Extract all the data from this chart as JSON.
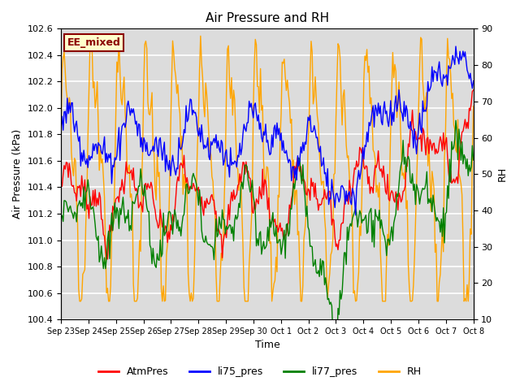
{
  "title": "Air Pressure and RH",
  "xlabel": "Time",
  "ylabel_left": "Air Pressure (kPa)",
  "ylabel_right": "RH",
  "ylim_left": [
    100.4,
    102.6
  ],
  "ylim_right": [
    10,
    90
  ],
  "yticks_left": [
    100.4,
    100.6,
    100.8,
    101.0,
    101.2,
    101.4,
    101.6,
    101.8,
    102.0,
    102.2,
    102.4,
    102.6
  ],
  "yticks_right": [
    10,
    20,
    30,
    40,
    50,
    60,
    70,
    80,
    90
  ],
  "x_tick_labels": [
    "Sep 23",
    "Sep 24",
    "Sep 25",
    "Sep 26",
    "Sep 27",
    "Sep 28",
    "Sep 29",
    "Sep 30",
    "Oct 1",
    "Oct 2",
    "Oct 3",
    "Oct 4",
    "Oct 5",
    "Oct 6",
    "Oct 7",
    "Oct 8"
  ],
  "legend_labels": [
    "AtmPres",
    "li75_pres",
    "li77_pres",
    "RH"
  ],
  "legend_colors": [
    "red",
    "blue",
    "green",
    "orange"
  ],
  "annotation_text": "EE_mixed",
  "annotation_color": "#8B0000",
  "annotation_bg": "#FFFFCC",
  "annotation_border": "#8B0000",
  "colors": {
    "AtmPres": "red",
    "li75_pres": "blue",
    "li77_pres": "green",
    "RH": "orange"
  },
  "bg_color": "#DCDCDC",
  "grid_color": "white",
  "n_points": 400,
  "n_days": 15
}
